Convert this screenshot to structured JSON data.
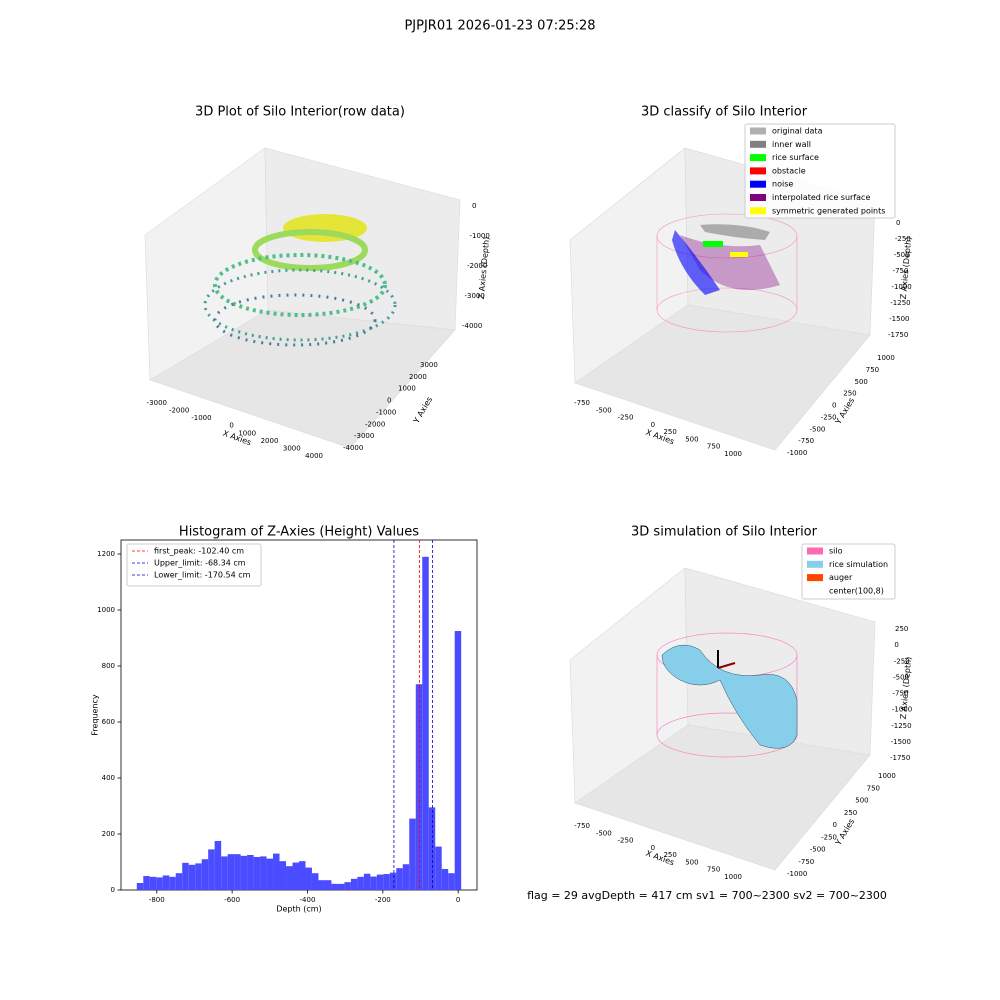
{
  "title": "PJPJR01 2026-01-23 07:25:28",
  "footer": "flag = 29  avgDepth = 417 cm  sv1 = 700~2300  sv2 = 700~2300",
  "chart_data": [
    {
      "type": "scatter3d",
      "title": "3D Plot of Silo Interior(row data)",
      "xlabel": "X Axies",
      "ylabel": "Y Axies",
      "zlabel": "Z Axies (Depth)",
      "xticks": [
        -3000,
        -2000,
        -1000,
        0,
        1000,
        2000,
        3000,
        4000
      ],
      "yticks": [
        -4000,
        -3000,
        -2000,
        -1000,
        0,
        1000,
        2000,
        3000
      ],
      "zticks": [
        -4000,
        -3000,
        -2000,
        -1000,
        0
      ]
    },
    {
      "type": "scatter3d",
      "title": "3D classify of Silo Interior",
      "xlabel": "X Axies",
      "ylabel": "Y Axies",
      "zlabel": "Z Axies (Depth)",
      "series": [
        {
          "name": "original data",
          "color": "#b0b0b0"
        },
        {
          "name": "inner wall",
          "color": "#808080"
        },
        {
          "name": "rice surface",
          "color": "#00ff00"
        },
        {
          "name": "obstacle",
          "color": "#ff0000"
        },
        {
          "name": "noise",
          "color": "#0000ff"
        },
        {
          "name": "interpolated rice surface",
          "color": "#800080"
        },
        {
          "name": "symmetric generated points",
          "color": "#ffff00"
        }
      ],
      "xticks": [
        -750,
        -500,
        -250,
        0,
        250,
        500,
        750,
        1000
      ],
      "yticks": [
        -1000,
        -750,
        -500,
        -250,
        0,
        250,
        500,
        750,
        1000
      ],
      "zticks": [
        -1750,
        -1500,
        -1250,
        -1000,
        -750,
        -500,
        -250,
        0
      ]
    },
    {
      "type": "histogram",
      "title": "Histogram of Z-Axies (Height) Values",
      "xlabel": "Depth (cm)",
      "ylabel": "Frequency",
      "color": "#4b4bff",
      "bins": [
        -853.0,
        -835.8,
        -818.6,
        -801.3,
        -784.1,
        -766.9,
        -749.7,
        -732.5,
        -715.2,
        -698.0,
        -680.8,
        -663.6,
        -646.4,
        -629.1,
        -611.9,
        -594.7,
        -577.5,
        -560.3,
        -543.0,
        -525.8,
        -508.6,
        -491.4,
        -474.2,
        -456.9,
        -439.7,
        -422.5,
        -405.3,
        -388.1,
        -370.8,
        -353.6,
        -336.4,
        -319.2,
        -302.0,
        -284.7,
        -267.5,
        -250.3,
        -233.1,
        -215.9,
        -198.6,
        -181.4,
        -164.2,
        -147.0,
        -129.8,
        -112.5,
        -95.3,
        -78.1,
        -60.9,
        -43.7,
        -26.4,
        -9.2,
        8.0
      ],
      "values": [
        25,
        50,
        47,
        45,
        52,
        47,
        60,
        97,
        90,
        95,
        110,
        145,
        175,
        120,
        128,
        128,
        122,
        125,
        118,
        120,
        112,
        130,
        103,
        85,
        98,
        103,
        80,
        60,
        35,
        35,
        22,
        22,
        28,
        40,
        47,
        58,
        48,
        55,
        57,
        62,
        78,
        92,
        255,
        735,
        1190,
        295,
        155,
        75,
        60,
        925
      ],
      "xlim": [
        -895,
        50
      ],
      "ylim": [
        0,
        1250
      ],
      "xticks": [
        -800,
        -600,
        -400,
        -200,
        0
      ],
      "yticks": [
        0,
        200,
        400,
        600,
        800,
        1000,
        1200
      ],
      "lines": [
        {
          "name": "first_peak: -102.40 cm",
          "value": -102.4,
          "color": "#ff0000"
        },
        {
          "name": "Upper_limit: -68.34 cm",
          "value": -68.34,
          "color": "#0000cc"
        },
        {
          "name": "Lower_limit: -170.54 cm",
          "value": -170.54,
          "color": "#0000cc"
        }
      ]
    },
    {
      "type": "surface3d",
      "title": "3D simulation of Silo Interior",
      "xlabel": "X Axies",
      "ylabel": "Y Axies",
      "zlabel": "Z Axies (Depth)",
      "series": [
        {
          "name": "silo",
          "color": "#ff69b4"
        },
        {
          "name": "rice simulation",
          "color": "#87ceeb"
        },
        {
          "name": "auger",
          "color": "#ff4500"
        },
        {
          "name": "center(100,8)",
          "color": "#ffffff"
        }
      ],
      "xticks": [
        -750,
        -500,
        -250,
        0,
        250,
        500,
        750,
        1000
      ],
      "yticks": [
        -1000,
        -750,
        -500,
        -250,
        0,
        250,
        500,
        750,
        1000
      ],
      "zticks": [
        -1750,
        -1500,
        -1250,
        -1000,
        -750,
        -500,
        -250,
        0,
        250
      ]
    }
  ]
}
